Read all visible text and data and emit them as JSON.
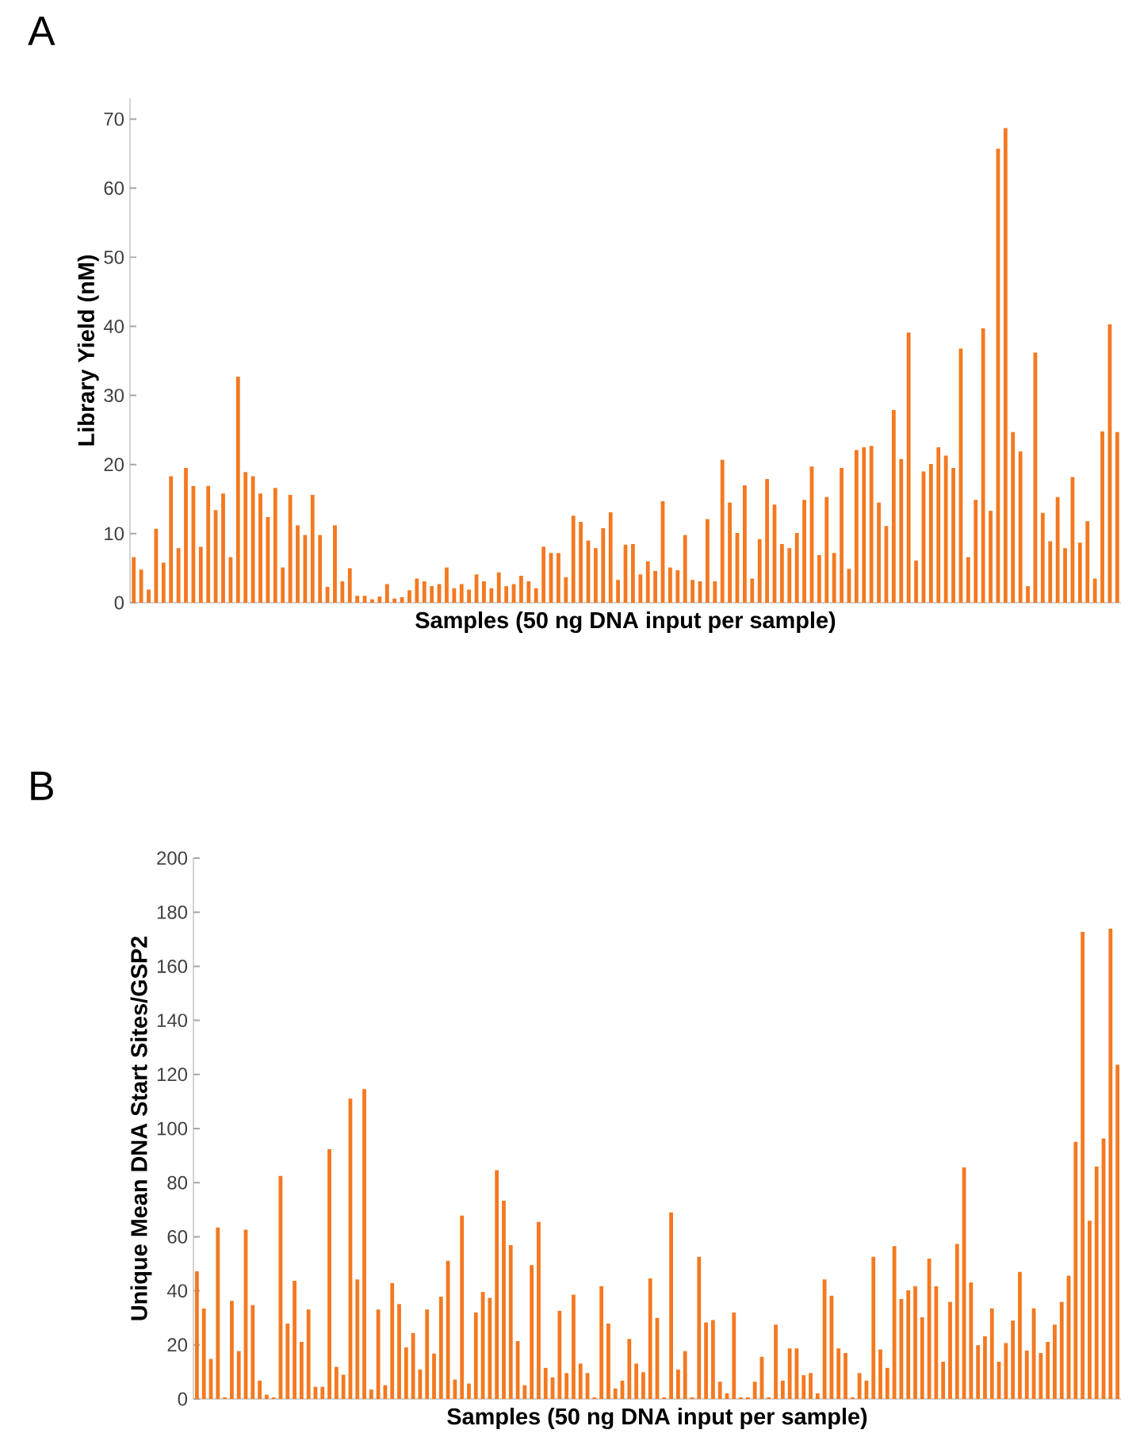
{
  "chart_data": [
    {
      "type": "bar",
      "annotations": [
        "A"
      ],
      "xlabel": "Samples (50 ng DNA input per sample)",
      "ylabel": "Library Yield (nM)",
      "color": "#f47920",
      "tick_labels": "y",
      "ylim": [
        0,
        73
      ],
      "yticks": [
        0,
        10,
        20,
        30,
        40,
        50,
        60,
        70
      ],
      "categories": [
        null,
        null,
        null,
        null,
        null,
        null,
        null,
        null,
        null,
        null,
        null,
        null,
        null,
        null,
        null,
        null,
        null,
        null,
        null,
        null,
        null,
        null,
        null,
        null,
        null,
        null,
        null,
        null,
        null,
        null,
        null,
        null,
        null,
        null,
        null,
        null,
        null,
        null,
        null,
        null,
        null,
        null,
        null,
        null,
        null,
        null,
        null,
        null,
        null,
        null,
        null,
        null,
        null,
        null,
        null,
        null,
        null,
        null,
        null,
        null,
        null,
        null,
        null,
        null,
        null,
        null,
        null,
        null,
        null,
        null,
        null,
        null,
        null,
        null,
        null,
        null,
        null,
        null,
        null,
        null,
        null,
        null,
        null,
        null,
        null,
        null,
        null,
        null,
        null,
        null,
        null,
        null,
        null,
        null,
        null,
        null,
        null,
        null,
        null,
        null,
        null,
        null,
        null,
        null,
        null,
        null,
        null,
        null,
        null,
        null,
        null,
        null,
        null,
        null,
        null,
        null,
        null,
        null,
        null,
        null,
        null,
        null,
        null,
        null,
        null,
        null,
        null,
        null,
        null,
        null,
        null,
        null,
        null
      ],
      "values": [
        6.6,
        4.8,
        1.9,
        10.7,
        5.8,
        18.3,
        7.9,
        19.5,
        16.9,
        8.1,
        16.9,
        13.4,
        15.8,
        6.6,
        32.7,
        18.9,
        18.3,
        15.8,
        12.4,
        16.6,
        5.1,
        15.6,
        11.2,
        9.8,
        15.6,
        9.8,
        2.3,
        11.2,
        3.1,
        5.0,
        1.0,
        1.0,
        0.5,
        0.9,
        2.7,
        0.6,
        0.8,
        1.8,
        3.5,
        3.1,
        2.4,
        2.7,
        5.1,
        2.1,
        2.7,
        1.9,
        4.1,
        3.1,
        2.1,
        4.4,
        2.4,
        2.7,
        3.9,
        3.1,
        2.1,
        8.1,
        7.2,
        7.2,
        3.7,
        12.6,
        11.7,
        9.0,
        7.9,
        10.8,
        13.1,
        3.3,
        8.4,
        8.5,
        4.1,
        6.0,
        4.6,
        14.7,
        5.1,
        4.7,
        9.8,
        3.3,
        3.1,
        12.1,
        3.1,
        20.7,
        14.5,
        10.1,
        17.0,
        3.5,
        9.2,
        17.9,
        14.2,
        8.5,
        7.9,
        10.1,
        14.9,
        19.7,
        6.9,
        15.3,
        7.2,
        19.5,
        4.9,
        22.1,
        22.5,
        22.7,
        14.5,
        11.1,
        27.9,
        20.8,
        39.1,
        6.1,
        19.0,
        20.1,
        22.5,
        21.3,
        19.5,
        36.8,
        6.6,
        14.9,
        39.7,
        13.3,
        65.7,
        68.7,
        24.7,
        21.9,
        2.4,
        36.2,
        13.0,
        8.9,
        15.3,
        7.9,
        18.2,
        8.7,
        11.8,
        3.5,
        24.8,
        40.3,
        24.7
      ]
    },
    {
      "type": "bar",
      "annotations": [
        "B"
      ],
      "xlabel": "Samples (50 ng DNA input per sample)",
      "ylabel": "Unique Mean DNA Start Sites/GSP2",
      "color": "#f47920",
      "tick_labels": "y",
      "ylim": [
        0,
        200
      ],
      "yticks": [
        0,
        20,
        40,
        60,
        80,
        100,
        120,
        140,
        160,
        180,
        200
      ],
      "categories": [
        null,
        null,
        null,
        null,
        null,
        null,
        null,
        null,
        null,
        null,
        null,
        null,
        null,
        null,
        null,
        null,
        null,
        null,
        null,
        null,
        null,
        null,
        null,
        null,
        null,
        null,
        null,
        null,
        null,
        null,
        null,
        null,
        null,
        null,
        null,
        null,
        null,
        null,
        null,
        null,
        null,
        null,
        null,
        null,
        null,
        null,
        null,
        null,
        null,
        null,
        null,
        null,
        null,
        null,
        null,
        null,
        null,
        null,
        null,
        null,
        null,
        null,
        null,
        null,
        null,
        null,
        null,
        null,
        null,
        null,
        null,
        null,
        null,
        null,
        null,
        null,
        null,
        null,
        null,
        null,
        null,
        null,
        null,
        null,
        null,
        null,
        null,
        null,
        null,
        null,
        null,
        null,
        null,
        null,
        null,
        null,
        null,
        null,
        null,
        null,
        null,
        null,
        null,
        null,
        null,
        null,
        null,
        null,
        null,
        null,
        null,
        null,
        null,
        null,
        null,
        null,
        null,
        null,
        null,
        null,
        null,
        null,
        null,
        null,
        null,
        null,
        null,
        null,
        null,
        null,
        null,
        null,
        null
      ],
      "values": [
        47.2,
        33.5,
        14.8,
        63.4,
        0.6,
        36.3,
        17.7,
        62.6,
        34.7,
        6.8,
        1.6,
        0.6,
        82.5,
        27.9,
        43.7,
        21.1,
        33.1,
        4.5,
        4.5,
        92.4,
        11.9,
        9.0,
        111.1,
        44.2,
        114.6,
        3.5,
        33.1,
        5.1,
        42.9,
        35.1,
        19.1,
        24.4,
        10.9,
        33.1,
        16.8,
        37.8,
        51.1,
        7.2,
        67.8,
        5.7,
        32.0,
        39.6,
        37.4,
        84.6,
        73.3,
        56.9,
        21.4,
        5.1,
        49.5,
        65.5,
        11.5,
        8.0,
        32.6,
        9.6,
        38.6,
        13.1,
        9.6,
        0.6,
        41.7,
        27.9,
        3.9,
        6.8,
        22.2,
        13.1,
        9.9,
        44.6,
        30.0,
        0.6,
        69.0,
        10.9,
        17.7,
        0.6,
        52.6,
        28.3,
        29.2,
        6.4,
        2.1,
        32.0,
        0.6,
        0.6,
        6.4,
        15.6,
        0.6,
        27.5,
        6.8,
        18.7,
        18.7,
        8.8,
        9.6,
        2.1,
        44.2,
        38.2,
        18.7,
        17.0,
        0.6,
        9.6,
        6.8,
        52.6,
        18.3,
        11.5,
        56.5,
        37.0,
        40.2,
        41.7,
        30.2,
        51.9,
        41.7,
        13.8,
        35.9,
        57.3,
        85.6,
        43.1,
        19.9,
        23.2,
        33.5,
        13.8,
        20.7,
        29.0,
        47.0,
        17.9,
        33.5,
        17.0,
        21.1,
        27.5,
        35.9,
        45.6,
        95.1,
        172.7,
        65.9,
        86.0,
        96.3,
        173.9,
        123.6
      ]
    }
  ]
}
